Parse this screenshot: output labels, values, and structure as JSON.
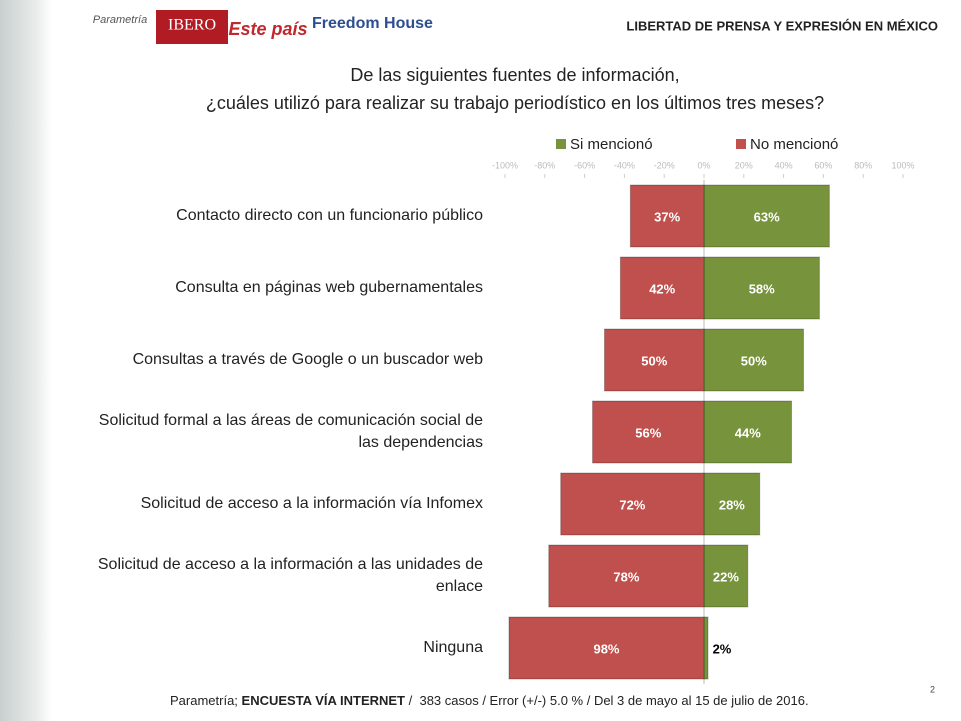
{
  "header": {
    "logos": [
      "Parametría",
      "IBERO",
      "Este país",
      "Freedom House"
    ],
    "title": "LIBERTAD DE PRENSA Y EXPRESIÓN EN MÉXICO"
  },
  "chart_data": {
    "type": "bar",
    "title": [
      "De las siguientes fuentes de información,",
      "¿cuáles utilizó para realizar su trabajo periodístico en los últimos tres meses?"
    ],
    "categories": [
      "Contacto directo con un funcionario público",
      "Consulta en páginas web gubernamentales",
      "Consultas a través de Google o un buscador web",
      "Solicitud formal a las áreas de comunicación social de las dependencias",
      "Solicitud de acceso a la información vía Infomex",
      "Solicitud de acceso a la información a las unidades de enlace",
      "Ninguna"
    ],
    "series": [
      {
        "name": "Si mencionó",
        "color": "#77933c",
        "values": [
          63,
          58,
          50,
          44,
          28,
          22,
          2
        ],
        "value_labels": [
          "63%",
          "58%",
          "50%",
          "44%",
          "28%",
          "22%",
          "2%"
        ]
      },
      {
        "name": "No mencionó",
        "color": "#c0504d",
        "values": [
          -37,
          -42,
          -50,
          -56,
          -72,
          -78,
          -98
        ],
        "value_labels": [
          "37%",
          "42%",
          "50%",
          "56%",
          "72%",
          "78%",
          "98%"
        ]
      }
    ],
    "xlim": [
      -100,
      100
    ],
    "xticks": [
      {
        "value": -100,
        "label": "-100%"
      },
      {
        "value": -80,
        "label": "-80%"
      },
      {
        "value": -60,
        "label": "-60%"
      },
      {
        "value": -40,
        "label": "-40%"
      },
      {
        "value": -20,
        "label": "-20%"
      },
      {
        "value": 0,
        "label": "0%"
      },
      {
        "value": 20,
        "label": "20%"
      },
      {
        "value": 40,
        "label": "40%"
      },
      {
        "value": 60,
        "label": "60%"
      },
      {
        "value": 80,
        "label": "80%"
      },
      {
        "value": 100,
        "label": "100%"
      }
    ],
    "legend": "top"
  },
  "footer": {
    "source": [
      "Parametría; ",
      "ENCUESTA VÍA INTERNET",
      " /  383 casos / Error (+/-) 5.0 % / Del 3 de mayo al 15 de julio de 2016."
    ],
    "page": "2"
  }
}
